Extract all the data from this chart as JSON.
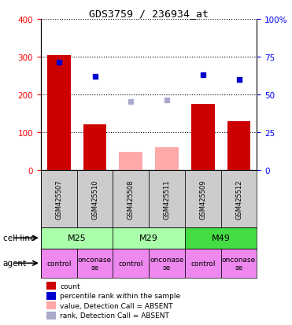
{
  "title": "GDS3759 / 236934_at",
  "samples": [
    "GSM425507",
    "GSM425510",
    "GSM425508",
    "GSM425511",
    "GSM425509",
    "GSM425512"
  ],
  "bar_values": [
    305,
    122,
    null,
    null,
    175,
    130
  ],
  "bar_absent_values": [
    null,
    null,
    48,
    62,
    null,
    null
  ],
  "dot_values": [
    285,
    248,
    null,
    null,
    253,
    240
  ],
  "dot_absent_values": [
    null,
    null,
    182,
    185,
    null,
    null
  ],
  "bar_color": "#cc0000",
  "bar_absent_color": "#ffaaaa",
  "dot_color": "#0000cc",
  "dot_absent_color": "#aaaacc",
  "ylim_left": [
    0,
    400
  ],
  "ylim_right": [
    0,
    100
  ],
  "yticks_left": [
    0,
    100,
    200,
    300,
    400
  ],
  "yticks_right": [
    0,
    25,
    50,
    75,
    100
  ],
  "ytick_labels_right": [
    "0",
    "25",
    "50",
    "75",
    "100%"
  ],
  "cell_line_data": [
    [
      "M25",
      0,
      2
    ],
    [
      "M29",
      2,
      4
    ],
    [
      "M49",
      4,
      6
    ]
  ],
  "cell_line_colors": [
    "#aaffaa",
    "#aaffaa",
    "#44dd44"
  ],
  "agents": [
    "control",
    "onconase\nse",
    "control",
    "onconase\nse",
    "control",
    "onconase\nse"
  ],
  "agent_color": "#ee88ee",
  "sample_bg_color": "#cccccc",
  "legend_items": [
    {
      "label": "count",
      "color": "#cc0000"
    },
    {
      "label": "percentile rank within the sample",
      "color": "#0000cc"
    },
    {
      "label": "value, Detection Call = ABSENT",
      "color": "#ffaaaa"
    },
    {
      "label": "rank, Detection Call = ABSENT",
      "color": "#aaaacc"
    }
  ]
}
